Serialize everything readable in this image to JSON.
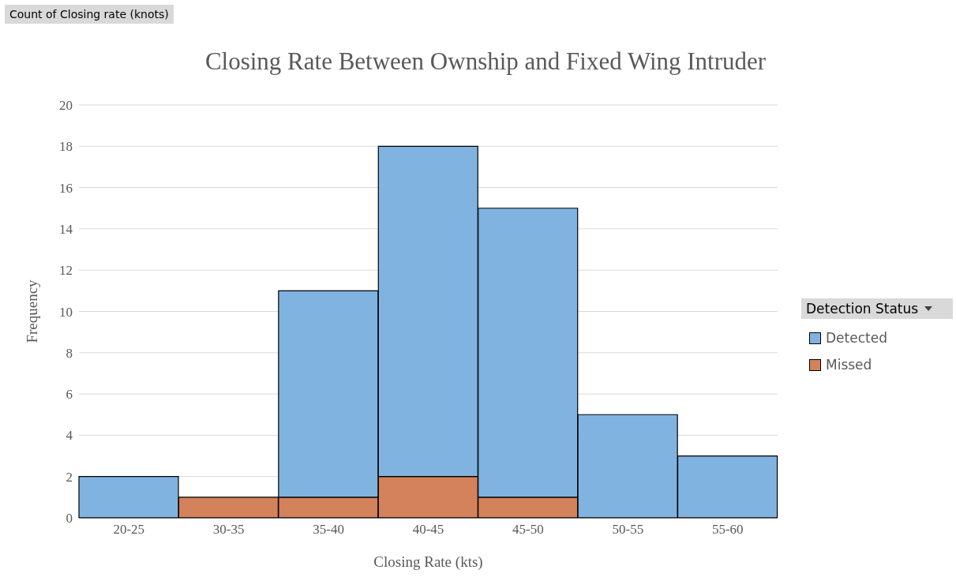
{
  "chart_data": {
    "type": "bar",
    "title": "Closing Rate Between Ownship and Fixed Wing Intruder",
    "xlabel": "Closing Rate (kts)",
    "ylabel": "Frequency",
    "legend_title": "Detection Status",
    "annotations": [
      "Count of Closing rate (knots)"
    ],
    "categories": [
      "20-25",
      "30-35",
      "35-40",
      "40-45",
      "45-50",
      "50-55",
      "55-60"
    ],
    "series": [
      {
        "name": "Missed",
        "color": "#d3825b",
        "values": [
          null,
          1,
          1,
          2,
          1,
          null,
          null
        ]
      },
      {
        "name": "Detected",
        "color": "#80b3e0",
        "values": [
          2,
          null,
          10,
          16,
          14,
          5,
          3
        ]
      }
    ],
    "stacked": true,
    "ylim": [
      0,
      20
    ],
    "yticks": [
      0,
      2,
      4,
      6,
      8,
      10,
      12,
      14,
      16,
      18,
      20
    ],
    "grid": "y",
    "legend": "right"
  }
}
